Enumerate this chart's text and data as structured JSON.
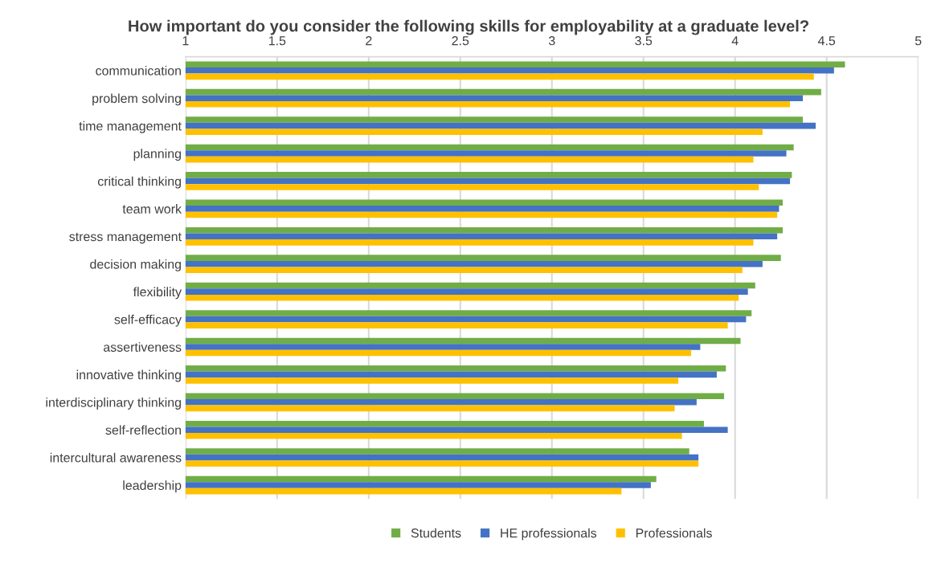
{
  "chart_data": {
    "type": "bar",
    "orientation": "horizontal",
    "title": "How important do you consider the following skills for employability at a graduate level?",
    "categories": [
      "communication",
      "problem solving",
      "time management",
      "planning",
      "critical thinking",
      "team work",
      "stress management",
      "decision making",
      "flexibility",
      "self-efficacy",
      "assertiveness",
      "innovative thinking",
      "interdisciplinary thinking",
      "self-reflection",
      "intercultural awareness",
      "leadership"
    ],
    "series": [
      {
        "name": "Students",
        "color": "#70ad47",
        "values": [
          4.6,
          4.47,
          4.37,
          4.32,
          4.31,
          4.26,
          4.26,
          4.25,
          4.11,
          4.09,
          4.03,
          3.95,
          3.94,
          3.83,
          3.75,
          3.57
        ]
      },
      {
        "name": "HE professionals",
        "color": "#4472c4",
        "values": [
          4.54,
          4.37,
          4.44,
          4.28,
          4.3,
          4.24,
          4.23,
          4.15,
          4.07,
          4.06,
          3.81,
          3.9,
          3.79,
          3.96,
          3.8,
          3.54
        ]
      },
      {
        "name": "Professionals",
        "color": "#ffc000",
        "values": [
          4.43,
          4.3,
          4.15,
          4.1,
          4.13,
          4.23,
          4.1,
          4.04,
          4.02,
          3.96,
          3.76,
          3.69,
          3.67,
          3.71,
          3.8,
          3.38
        ]
      }
    ],
    "xlim": [
      1,
      5
    ],
    "xticks": [
      1,
      1.5,
      2,
      2.5,
      3,
      3.5,
      4,
      4.5,
      5
    ],
    "grid": "x",
    "legend": "bottom"
  }
}
